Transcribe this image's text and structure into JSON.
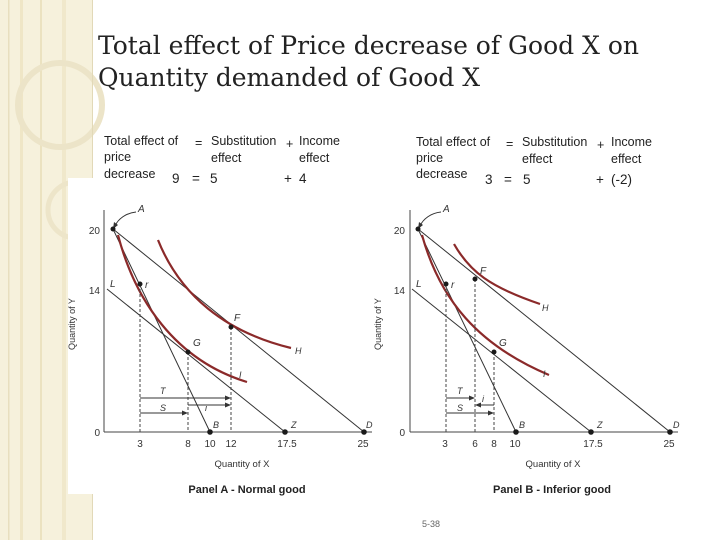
{
  "slide": {
    "title_line1": "Total effect of Price decrease of Good X on",
    "title_line2": "Quantity demanded of Good X",
    "page_number": "5-38"
  },
  "panel_a": {
    "equation": {
      "total_line1": "Total effect of",
      "total_line2": "price",
      "total_line3": "decrease",
      "eq_sign": "=",
      "sub_line1": "Substitution",
      "sub_line2": "effect",
      "plus_sign": "+",
      "inc_line1": "Income",
      "inc_line2": "effect",
      "total_value": "9",
      "sub_value": "5",
      "inc_value": "4"
    },
    "graph": {
      "caption": "Panel A - Normal good",
      "y_axis_label": "Quantity of Y",
      "x_axis_label": "Quantity of X",
      "y_ticks": [
        "20",
        "14",
        "0"
      ],
      "x_ticks": [
        "3",
        "8",
        "10",
        "12",
        "17.5",
        "25"
      ],
      "point_labels": {
        "A": "A",
        "L": "L",
        "r": "r",
        "F": "F",
        "G": "G",
        "T": "T",
        "S": "S",
        "B": "B",
        "Z": "Z",
        "D": "D"
      },
      "curve_labels": {
        "H": "H",
        "I": "I"
      }
    }
  },
  "panel_b": {
    "equation": {
      "total_line1": "Total effect of",
      "total_line2": "price",
      "total_line3": "decrease",
      "eq_sign": "=",
      "sub_line1": "Substitution",
      "sub_line2": "effect",
      "plus_sign": "+",
      "inc_line1": "Income",
      "inc_line2": "effect",
      "total_value": "3",
      "sub_value": "5",
      "inc_value": "(-2)"
    },
    "graph": {
      "caption": "Panel B - Inferior good",
      "y_axis_label": "Quantity of Y",
      "x_axis_label": "Quantity of X",
      "y_ticks": [
        "20",
        "14",
        "0"
      ],
      "x_ticks": [
        "3",
        "6",
        "8",
        "10",
        "17.5",
        "25"
      ],
      "point_labels": {
        "A": "A",
        "L": "L",
        "r": "r",
        "F": "F",
        "G": "G",
        "T": "T",
        "S": "S",
        "B": "B",
        "Z": "Z",
        "D": "D"
      },
      "curve_labels": {
        "H": "H",
        "I": "I"
      }
    }
  },
  "colors": {
    "curve": "#8b2a2a",
    "line": "#333333",
    "point": "#1a1a1a",
    "background_left": "#f3ecd2"
  }
}
